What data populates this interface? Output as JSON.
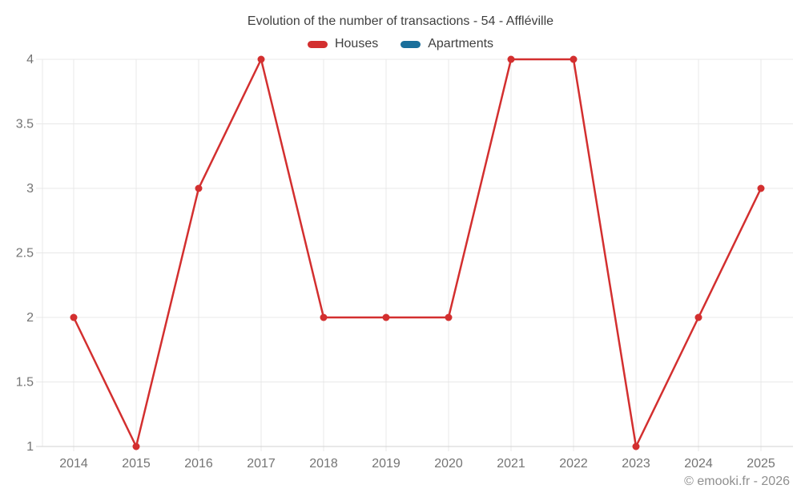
{
  "watermark": "© emooki.fr - 2026",
  "colors": {
    "background": "#ffffff",
    "grid": "#e8e8e8",
    "axis": "#d2d2d2",
    "tick_label": "#747474",
    "title_text": "#3f3f3f",
    "legend_text": "#3f3f3f",
    "watermark_text": "#8f8f8f",
    "houses": "#d32f2f",
    "apartments": "#1a6f9b"
  },
  "chart_data": {
    "type": "line",
    "title": "Evolution of the number of transactions - 54 - Affléville",
    "x": [
      2014,
      2015,
      2016,
      2017,
      2018,
      2019,
      2020,
      2021,
      2022,
      2023,
      2024,
      2025
    ],
    "series": [
      {
        "name": "Houses",
        "color": "#d32f2f",
        "values": [
          2,
          1,
          3,
          4,
          2,
          2,
          2,
          4,
          4,
          1,
          2,
          3
        ]
      },
      {
        "name": "Apartments",
        "color": "#1a6f9b",
        "values": []
      }
    ],
    "xlabel": "",
    "ylabel": "",
    "ylim": [
      1,
      4
    ],
    "yticks": [
      1,
      1.5,
      2,
      2.5,
      3,
      3.5,
      4
    ],
    "grid": true,
    "legend_position": "top",
    "marker": "circle"
  }
}
